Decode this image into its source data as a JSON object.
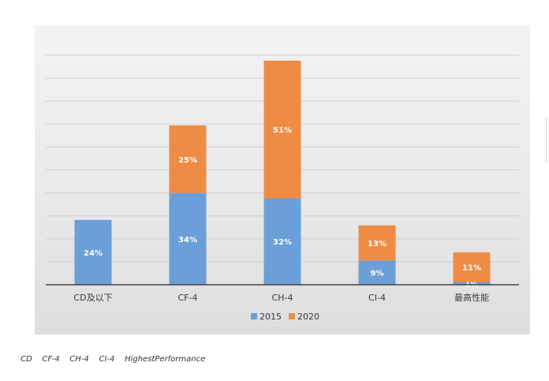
{
  "chart_data": {
    "type": "bar",
    "stacked": true,
    "categories": [
      "CD及以下",
      "CF-4",
      "CH-4",
      "CI-4",
      "最高性能"
    ],
    "series": [
      {
        "name": "2015",
        "values": [
          24,
          34,
          32,
          9,
          1
        ],
        "labels": [
          "24%",
          "34%",
          "32%",
          "9%",
          "1%"
        ],
        "color": "#6a9fd8"
      },
      {
        "name": "2020",
        "values": [
          0,
          25,
          51,
          13,
          11
        ],
        "labels": [
          "",
          "25%",
          "51%",
          "13%",
          "11%"
        ],
        "color": "#ee8c45"
      }
    ],
    "ylim": [
      0,
      85
    ],
    "grid": true,
    "legend_position": "bottom"
  },
  "caption": "CD    CF-4    CH-4    CI-4    HighestPerformance"
}
